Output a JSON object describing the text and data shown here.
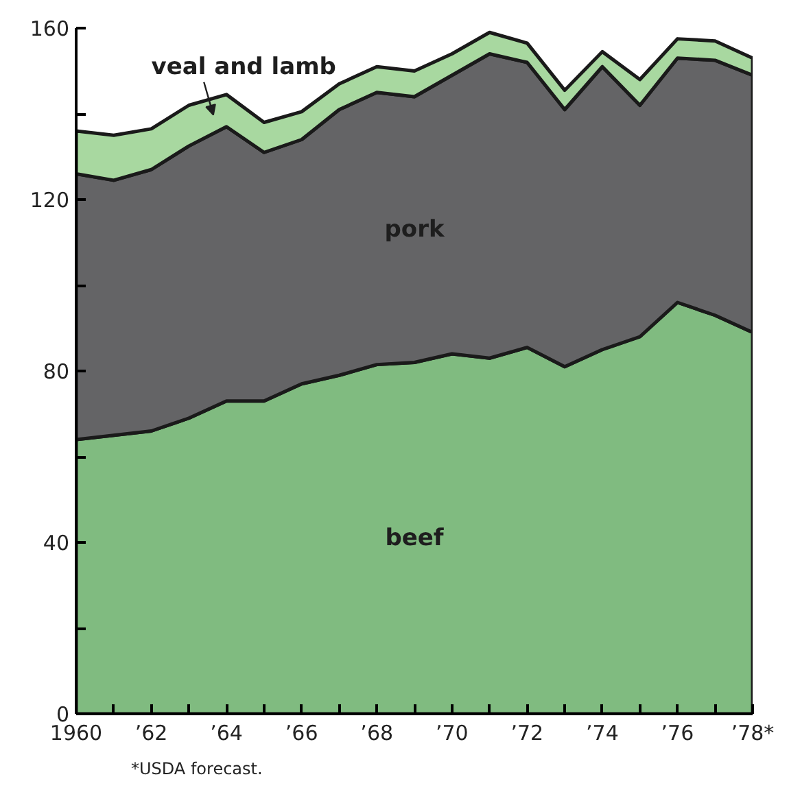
{
  "chart_data": {
    "type": "area",
    "stacked": true,
    "x": [
      "1960",
      "1961",
      "1962",
      "1963",
      "1964",
      "1965",
      "1966",
      "1967",
      "1968",
      "1969",
      "1970",
      "1971",
      "1972",
      "1973",
      "1974",
      "1975",
      "1976",
      "1977",
      "1978"
    ],
    "series": [
      {
        "name": "beef",
        "color": "#80bb80",
        "values": [
          64,
          65,
          66,
          69,
          73,
          73,
          77,
          79,
          81.5,
          82,
          84,
          83,
          85.5,
          81,
          85,
          88,
          96,
          93,
          89
        ]
      },
      {
        "name": "pork",
        "color": "#646466",
        "values": [
          62,
          59.5,
          61,
          63.5,
          64,
          58,
          57,
          62,
          63.5,
          62,
          65,
          71,
          66.5,
          60,
          66,
          54,
          57,
          59.5,
          60
        ]
      },
      {
        "name": "veal and lamb",
        "color": "#a8d8a0",
        "values": [
          10,
          10.5,
          9.5,
          9.5,
          7.5,
          7,
          6.5,
          6,
          6,
          6,
          5,
          5,
          4.5,
          4.5,
          3.5,
          6,
          4.5,
          4.5,
          4
        ]
      }
    ],
    "xlim": [
      "1960",
      "1978"
    ],
    "xticks": [
      "1960",
      {
        "value": "1961",
        "label": null
      },
      {
        "value": "1962",
        "label": "’62"
      },
      {
        "value": "1963",
        "label": null
      },
      {
        "value": "1964",
        "label": "’64"
      },
      {
        "value": "1965",
        "label": null
      },
      {
        "value": "1966",
        "label": "’66"
      },
      {
        "value": "1967",
        "label": null
      },
      {
        "value": "1968",
        "label": "’68"
      },
      {
        "value": "1969",
        "label": null
      },
      {
        "value": "1970",
        "label": "’70"
      },
      {
        "value": "1971",
        "label": null
      },
      {
        "value": "1972",
        "label": "’72"
      },
      {
        "value": "1973",
        "label": null
      },
      {
        "value": "1974",
        "label": "’74"
      },
      {
        "value": "1975",
        "label": null
      },
      {
        "value": "1976",
        "label": "’76"
      },
      {
        "value": "1977",
        "label": null
      },
      {
        "value": "1978",
        "label": "’78*"
      }
    ],
    "ylim": [
      0,
      160
    ],
    "yticks": [
      0,
      {
        "value": 20,
        "label": null
      },
      40,
      {
        "value": 60,
        "label": null
      },
      80,
      {
        "value": 100,
        "label": null
      },
      120,
      {
        "value": 140,
        "label": null
      },
      160
    ],
    "annotations": [
      "*USDA forecast."
    ]
  }
}
